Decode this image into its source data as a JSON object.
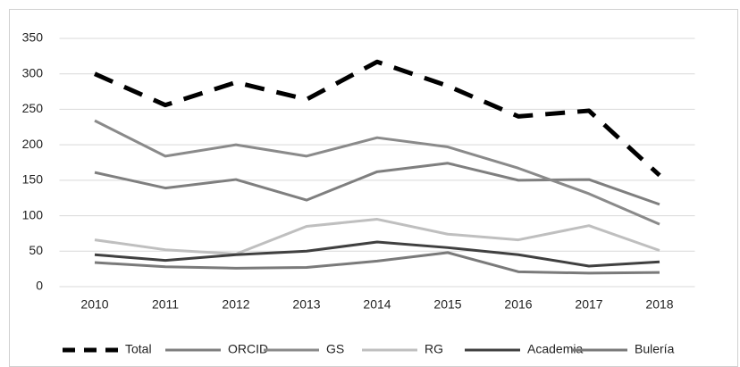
{
  "chart_data": {
    "type": "line",
    "categories": [
      "2010",
      "2011",
      "2012",
      "2013",
      "2014",
      "2015",
      "2016",
      "2017",
      "2018"
    ],
    "series": [
      {
        "name": "Total",
        "color": "#000000",
        "dashed": true,
        "values": [
          300,
          256,
          288,
          264,
          317,
          283,
          240,
          248,
          157
        ]
      },
      {
        "name": "ORCID",
        "color": "#7f7f7f",
        "values": [
          161,
          139,
          151,
          122,
          162,
          174,
          150,
          151,
          116
        ]
      },
      {
        "name": "GS",
        "color": "#8a8a8a",
        "values": [
          234,
          184,
          200,
          184,
          210,
          197,
          167,
          131,
          88
        ]
      },
      {
        "name": "RG",
        "color": "#bfbfbf",
        "values": [
          66,
          52,
          46,
          85,
          95,
          74,
          66,
          86,
          51
        ]
      },
      {
        "name": "Academia",
        "color": "#404040",
        "values": [
          45,
          37,
          45,
          50,
          63,
          55,
          45,
          29,
          35
        ]
      },
      {
        "name": "Bulería",
        "color": "#7a7a7a",
        "values": [
          34,
          28,
          26,
          27,
          36,
          48,
          21,
          19,
          20
        ]
      }
    ],
    "ylim": [
      0,
      350
    ],
    "yticks": [
      0,
      50,
      100,
      150,
      200,
      250,
      300,
      350
    ],
    "grid": true,
    "legend": "bottom"
  }
}
